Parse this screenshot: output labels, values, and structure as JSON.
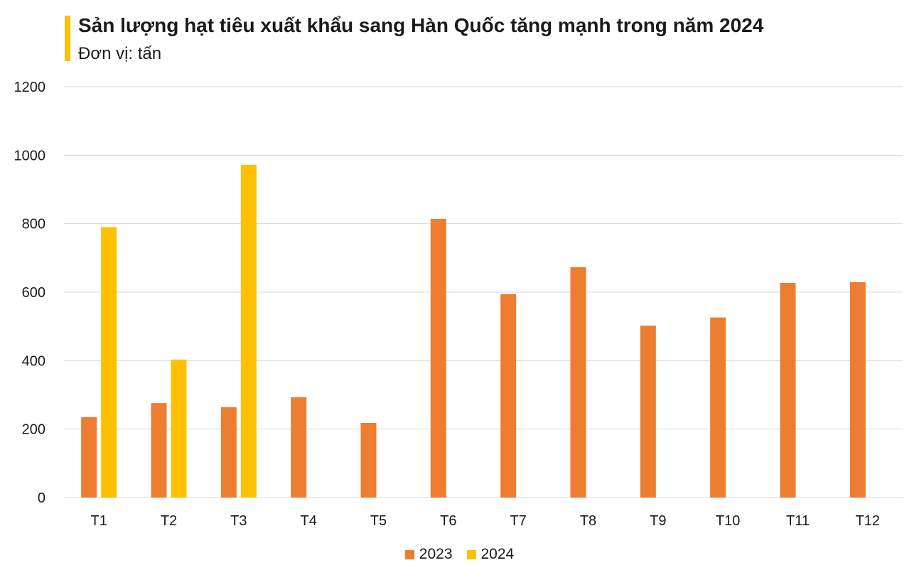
{
  "chart_data": {
    "type": "bar",
    "title": "Sản lượng hạt tiêu xuất khẩu sang Hàn Quốc tăng mạnh trong năm 2024",
    "subtitle": "Đơn vị: tấn",
    "categories": [
      "T1",
      "T2",
      "T3",
      "T4",
      "T5",
      "T6",
      "T7",
      "T8",
      "T9",
      "T10",
      "T11",
      "T12"
    ],
    "series": [
      {
        "name": "2023",
        "color": "#ED7D31",
        "values": [
          235,
          276,
          264,
          293,
          218,
          814,
          594,
          673,
          502,
          526,
          627,
          629
        ]
      },
      {
        "name": "2024",
        "color": "#FFC000",
        "values": [
          790,
          403,
          972,
          null,
          null,
          null,
          null,
          null,
          null,
          null,
          null,
          null
        ]
      }
    ],
    "ylim": [
      0,
      1200
    ],
    "yticks": [
      0,
      200,
      400,
      600,
      800,
      1000,
      1200
    ],
    "grid": true,
    "legend_position": "bottom",
    "xlabel": "",
    "ylabel": ""
  }
}
